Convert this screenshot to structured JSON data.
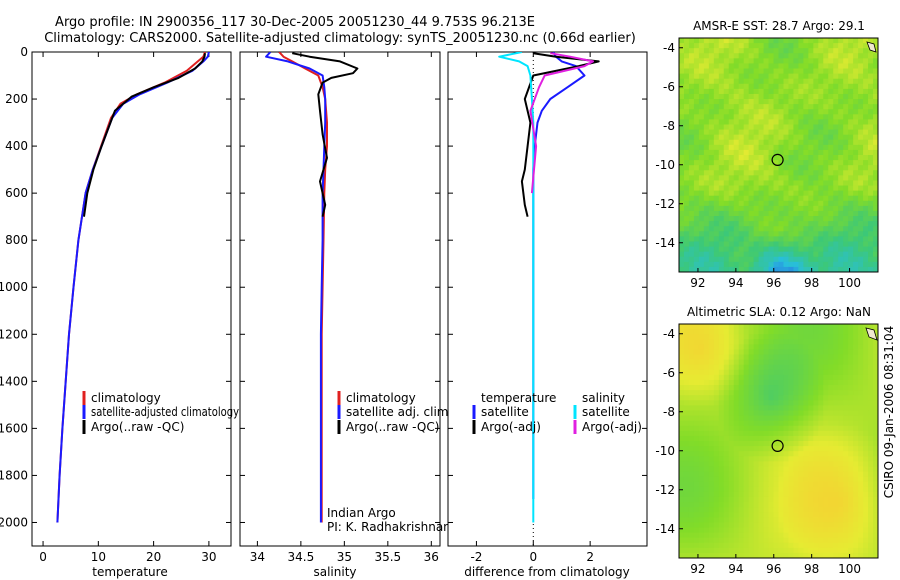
{
  "header": {
    "line1": "Argo profile: IN 2900356_117 30-Dec-2005 20051230_44 9.753S 96.213E",
    "line2": "Climatology: CARS2000. Satellite-adjusted climatology: synTS_20051230.nc (0.66d earlier)"
  },
  "credit": "CSIRO 09-Jan-2006 08:31:04",
  "colors": {
    "climatology": "#e02020",
    "satellite": "#1a1aff",
    "argo": "#000000",
    "sal_sat": "#00e5ff",
    "sal_argo": "#e020e0"
  },
  "chart_data": [
    {
      "type": "line",
      "xlabel": "temperature",
      "ylabel": "",
      "xlim": [
        -2,
        34
      ],
      "ylim": [
        2100,
        0
      ],
      "xticks": [
        0,
        10,
        20,
        30
      ],
      "yticks": [
        0,
        200,
        400,
        600,
        800,
        1000,
        1200,
        1400,
        1600,
        1800,
        2000
      ],
      "legend": [
        "climatology",
        "satellite-adjusted climatology",
        "Argo(..raw -QC)"
      ],
      "series": [
        {
          "name": "climatology",
          "color": "#e02020",
          "x": [
            29.3,
            29.0,
            28.0,
            26.0,
            22.0,
            17.0,
            14.0,
            12.3,
            10.5,
            9.0,
            7.7,
            6.4,
            5.5,
            4.7,
            4.1,
            3.5,
            3.0,
            2.6
          ],
          "y": [
            0,
            20,
            40,
            80,
            130,
            180,
            220,
            280,
            400,
            500,
            600,
            800,
            1000,
            1200,
            1400,
            1600,
            1800,
            2000
          ]
        },
        {
          "name": "satellite-adjusted climatology",
          "color": "#1a1aff",
          "x": [
            30.0,
            29.8,
            29.0,
            27.0,
            22.5,
            17.5,
            14.5,
            12.5,
            10.6,
            9.0,
            7.7,
            6.4,
            5.5,
            4.7,
            4.1,
            3.5,
            3.0,
            2.6
          ],
          "y": [
            0,
            20,
            40,
            80,
            130,
            180,
            220,
            280,
            400,
            500,
            600,
            800,
            1000,
            1200,
            1400,
            1600,
            1800,
            2000
          ]
        },
        {
          "name": "Argo(..raw -QC)",
          "color": "#000000",
          "x": [
            29.3,
            29.2,
            28.8,
            27.5,
            24.5,
            20.0,
            16.0,
            13.0,
            10.6,
            9.1,
            8.0,
            7.4
          ],
          "y": [
            5,
            20,
            40,
            70,
            110,
            150,
            190,
            250,
            400,
            500,
            600,
            700
          ]
        }
      ]
    },
    {
      "type": "line",
      "xlabel": "salinity",
      "ylabel": "",
      "xlim": [
        33.8,
        36.1
      ],
      "ylim": [
        2100,
        0
      ],
      "xticks": [
        34,
        34.5,
        35,
        35.5,
        36
      ],
      "legend": [
        "climatology",
        "satellite adj. clim.",
        "Argo(..raw -QC)"
      ],
      "annotation": [
        "Indian Argo",
        "PI: K. Radhakrishnan"
      ],
      "series": [
        {
          "name": "climatology",
          "color": "#e02020",
          "x": [
            34.25,
            34.3,
            34.4,
            34.55,
            34.7,
            34.75,
            34.78,
            34.8,
            34.8,
            34.78,
            34.77,
            34.76,
            34.75,
            34.74,
            34.74,
            34.74,
            34.74,
            34.74
          ],
          "y": [
            0,
            20,
            40,
            70,
            100,
            150,
            200,
            300,
            400,
            500,
            600,
            800,
            1000,
            1200,
            1400,
            1600,
            1800,
            2000
          ]
        },
        {
          "name": "satellite adj. clim.",
          "color": "#1a1aff",
          "x": [
            34.15,
            34.1,
            34.35,
            34.6,
            34.75,
            34.77,
            34.78,
            34.78,
            34.77,
            34.76,
            34.75,
            34.75,
            34.74,
            34.73,
            34.73,
            34.73,
            34.73,
            34.73
          ],
          "y": [
            0,
            20,
            40,
            70,
            100,
            150,
            200,
            300,
            400,
            500,
            600,
            800,
            1000,
            1200,
            1400,
            1600,
            1800,
            2000
          ]
        },
        {
          "name": "Argo(..raw -QC)",
          "color": "#000000",
          "x": [
            34.4,
            34.6,
            34.95,
            35.15,
            35.1,
            34.85,
            34.75,
            34.7,
            34.72,
            34.75,
            34.8,
            34.72,
            34.78,
            34.75
          ],
          "y": [
            5,
            20,
            40,
            70,
            90,
            110,
            130,
            180,
            250,
            350,
            450,
            550,
            650,
            700
          ]
        }
      ]
    },
    {
      "type": "line",
      "xlabel": "difference from climatology",
      "ylabel": "",
      "xlim": [
        -3,
        4
      ],
      "ylim": [
        2100,
        0
      ],
      "xticks": [
        -2,
        0,
        2
      ],
      "legend": [
        "temperature",
        "satellite",
        "Argo(-adj)",
        "salinity",
        "satellite",
        "Argo(-adj)"
      ],
      "series": [
        {
          "name": "satellite",
          "color": "#1a1aff",
          "x": [
            0.7,
            0.8,
            1.0,
            1.5,
            1.8,
            1.2,
            0.6,
            0.3,
            0.15,
            0.05,
            0.0,
            0.0,
            0.0,
            0.0,
            0.0,
            0.0,
            0.0,
            0.0
          ],
          "y": [
            0,
            20,
            40,
            60,
            100,
            150,
            200,
            250,
            300,
            400,
            500,
            600,
            800,
            1000,
            1200,
            1400,
            1600,
            1900
          ]
        },
        {
          "name": "Argo(-adj)",
          "color": "#000000",
          "x": [
            0.0,
            0.8,
            2.3,
            1.6,
            0.0,
            -0.3,
            -0.1,
            -0.2,
            -0.3,
            -0.4,
            -0.3,
            -0.2
          ],
          "y": [
            5,
            20,
            40,
            60,
            100,
            200,
            300,
            400,
            500,
            550,
            650,
            700
          ]
        },
        {
          "name": "satellite",
          "color": "#00e5ff",
          "x": [
            -0.4,
            -1.2,
            -0.5,
            -0.2,
            -0.1,
            -0.05,
            0.0,
            0.0,
            0.0,
            0.0,
            0.0,
            0.0
          ],
          "y": [
            0,
            20,
            40,
            60,
            100,
            200,
            300,
            500,
            800,
            1200,
            1600,
            2000
          ]
        },
        {
          "name": "Argo(-adj)",
          "color": "#e020e0",
          "x": [
            0.6,
            1.3,
            2.1,
            1.8,
            0.4,
            0.2,
            -0.1,
            0.1,
            -0.05
          ],
          "y": [
            5,
            20,
            40,
            60,
            100,
            150,
            250,
            400,
            600
          ]
        }
      ]
    },
    {
      "type": "heatmap",
      "title": "AMSR-E SST: 28.7 Argo: 29.1",
      "xlim": [
        91,
        101.5
      ],
      "ylim": [
        -15.5,
        -3.5
      ],
      "xticks": [
        92,
        94,
        96,
        98,
        100
      ],
      "yticks": [
        -4,
        -6,
        -8,
        -10,
        -12,
        -14
      ],
      "marker": {
        "x": 96.2,
        "y": -9.75
      }
    },
    {
      "type": "heatmap",
      "title": "Altimetric SLA: 0.12 Argo: NaN",
      "xlim": [
        91,
        101.5
      ],
      "ylim": [
        -15.5,
        -3.5
      ],
      "xticks": [
        92,
        94,
        96,
        98,
        100
      ],
      "yticks": [
        -4,
        -6,
        -8,
        -10,
        -12,
        -14
      ],
      "marker": {
        "x": 96.2,
        "y": -9.75
      }
    }
  ]
}
